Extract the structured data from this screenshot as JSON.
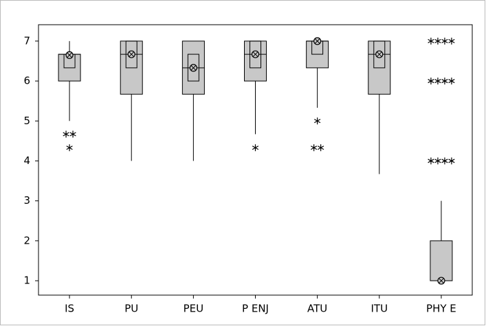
{
  "chart_data": {
    "type": "box",
    "categories": [
      "IS",
      "PU",
      "PEU",
      "P ENJ",
      "ATU",
      "ITU",
      "PHY E"
    ],
    "boxes": [
      {
        "whisker_low": 5,
        "q1": 6,
        "median": 6.67,
        "q3": 6.67,
        "whisker_high": 7,
        "mean": 6.65,
        "ci_low": 6.33,
        "ci_high": 6.67,
        "outliers": [
          4.67,
          4.67,
          4.33
        ]
      },
      {
        "whisker_low": 4,
        "q1": 5.67,
        "median": 6.67,
        "q3": 7,
        "whisker_high": 7,
        "mean": 6.67,
        "ci_low": 6.33,
        "ci_high": 7,
        "outliers": []
      },
      {
        "whisker_low": 4,
        "q1": 5.67,
        "median": 6.33,
        "q3": 7,
        "whisker_high": 7,
        "mean": 6.33,
        "ci_low": 6,
        "ci_high": 6.67,
        "outliers": []
      },
      {
        "whisker_low": 4.67,
        "q1": 6,
        "median": 6.67,
        "q3": 7,
        "whisker_high": 7,
        "mean": 6.67,
        "ci_low": 6.33,
        "ci_high": 7,
        "outliers": [
          4.33
        ]
      },
      {
        "whisker_low": 5.33,
        "q1": 6.33,
        "median": 7,
        "q3": 7,
        "whisker_high": 7,
        "mean": 7,
        "ci_low": 6.67,
        "ci_high": 7,
        "outliers": [
          5,
          4.33,
          4.33
        ]
      },
      {
        "whisker_low": 3.67,
        "q1": 5.67,
        "median": 6.67,
        "q3": 7,
        "whisker_high": 7,
        "mean": 6.67,
        "ci_low": 6.33,
        "ci_high": 7,
        "outliers": []
      },
      {
        "whisker_low": 1,
        "q1": 1,
        "median": 1,
        "q3": 2,
        "whisker_high": 3,
        "mean": 1,
        "ci_low": null,
        "ci_high": null,
        "outliers": [
          7,
          7,
          7,
          7,
          6,
          6,
          6,
          6,
          4,
          4,
          4,
          4
        ]
      }
    ],
    "box_color": "#c8c8c8",
    "ylim": [
      0.64,
      7.41
    ],
    "yticks": [
      1,
      2,
      3,
      4,
      5,
      6,
      7
    ]
  }
}
